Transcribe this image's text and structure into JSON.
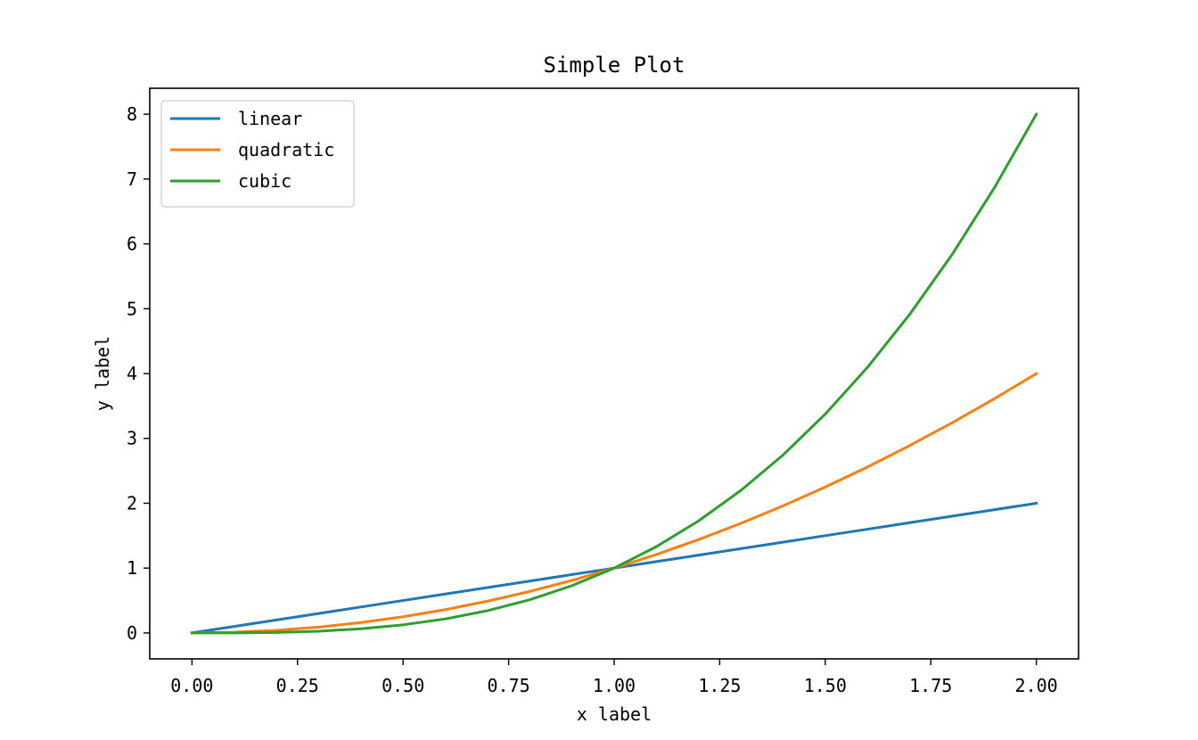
{
  "chart_data": {
    "type": "line",
    "title": "Simple Plot",
    "xlabel": "x label",
    "ylabel": "y label",
    "xlim": [
      -0.1,
      2.1
    ],
    "ylim": [
      -0.4,
      8.4
    ],
    "xticks": [
      0,
      0.25,
      0.5,
      0.75,
      1.0,
      1.25,
      1.5,
      1.75,
      2.0
    ],
    "xtick_labels": [
      "0.00",
      "0.25",
      "0.50",
      "0.75",
      "1.00",
      "1.25",
      "1.50",
      "1.75",
      "2.00"
    ],
    "yticks": [
      0,
      1,
      2,
      3,
      4,
      5,
      6,
      7,
      8
    ],
    "ytick_labels": [
      "0",
      "1",
      "2",
      "3",
      "4",
      "5",
      "6",
      "7",
      "8"
    ],
    "grid": false,
    "legend_position": "upper-left",
    "x": [
      0,
      0.1,
      0.2,
      0.3,
      0.4,
      0.5,
      0.6,
      0.7,
      0.8,
      0.9,
      1.0,
      1.1,
      1.2,
      1.3,
      1.4,
      1.5,
      1.6,
      1.7,
      1.8,
      1.9,
      2.0
    ],
    "series": [
      {
        "name": "linear",
        "color": "#1f77b4",
        "values": [
          0,
          0.1,
          0.2,
          0.3,
          0.4,
          0.5,
          0.6,
          0.7,
          0.8,
          0.9,
          1.0,
          1.1,
          1.2,
          1.3,
          1.4,
          1.5,
          1.6,
          1.7,
          1.8,
          1.9,
          2.0
        ]
      },
      {
        "name": "quadratic",
        "color": "#ff7f0e",
        "values": [
          0,
          0.01,
          0.04,
          0.09,
          0.16,
          0.25,
          0.36,
          0.49,
          0.64,
          0.81,
          1.0,
          1.21,
          1.44,
          1.69,
          1.96,
          2.25,
          2.56,
          2.89,
          3.24,
          3.61,
          4.0
        ]
      },
      {
        "name": "cubic",
        "color": "#2ca02c",
        "values": [
          0,
          0.001,
          0.008,
          0.027,
          0.064,
          0.125,
          0.216,
          0.343,
          0.512,
          0.729,
          1.0,
          1.331,
          1.728,
          2.197,
          2.744,
          3.375,
          4.096,
          4.913,
          5.832,
          6.859,
          8.0
        ]
      }
    ]
  }
}
